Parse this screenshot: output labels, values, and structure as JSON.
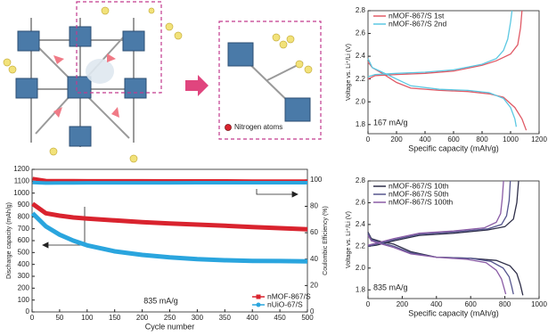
{
  "illustration": {
    "legend": "Nitrogen atoms"
  },
  "chart_data": [
    {
      "type": "line",
      "xlabel": "Specific capacity (mAh/g)",
      "ylabel": "Voltage vs. Li⁺/Li (V)",
      "annotation": "167 mA/g",
      "xlim": [
        0,
        1200
      ],
      "xticks": [
        0,
        200,
        400,
        600,
        800,
        1000,
        1200
      ],
      "ylim": [
        1.72,
        2.8
      ],
      "yticks": [
        1.8,
        {
          "value": 2,
          "label": "2.0"
        },
        2.2,
        2.4,
        2.6,
        2.8
      ],
      "legend": "upper left",
      "series": [
        {
          "name": "nMOF-867/S 1st",
          "color": "#e05a66",
          "x": [
            0,
            30,
            100,
            200,
            300,
            500,
            700,
            850,
            950,
            1030,
            1080,
            1110,
            null,
            0,
            50,
            200,
            400,
            600,
            800,
            900,
            1000,
            1050,
            1070,
            1080
          ],
          "values": [
            2.35,
            2.3,
            2.25,
            2.17,
            2.12,
            2.1,
            2.09,
            2.07,
            2.04,
            1.95,
            1.85,
            1.75,
            null,
            2.2,
            2.23,
            2.24,
            2.25,
            2.27,
            2.32,
            2.36,
            2.42,
            2.5,
            2.65,
            2.8
          ]
        },
        {
          "name": "nMOF-867/S 2nd",
          "color": "#5cc8e2",
          "x": [
            0,
            30,
            100,
            200,
            300,
            500,
            700,
            850,
            950,
            1000,
            1030,
            1040,
            null,
            0,
            50,
            200,
            400,
            600,
            800,
            900,
            950,
            980,
            1000,
            1010
          ],
          "values": [
            2.38,
            2.3,
            2.26,
            2.2,
            2.14,
            2.11,
            2.1,
            2.08,
            2.03,
            1.95,
            1.85,
            1.78,
            null,
            2.22,
            2.24,
            2.25,
            2.26,
            2.28,
            2.33,
            2.38,
            2.45,
            2.55,
            2.7,
            2.8
          ]
        }
      ]
    },
    {
      "type": "cycling",
      "xlabel": "Cycle number",
      "ylabel": "Discharge capacity (mAh/g)",
      "y2label": "Coulombic Efficiency (%)",
      "annotation": "835 mA/g",
      "xlim": [
        0,
        500
      ],
      "xticks": [
        0,
        50,
        100,
        150,
        200,
        250,
        300,
        350,
        400,
        450,
        500
      ],
      "ylim": [
        0,
        1200
      ],
      "yticks": [
        0,
        100,
        200,
        300,
        400,
        500,
        600,
        700,
        800,
        900,
        1000,
        1100,
        1200
      ],
      "y2lim": [
        0,
        108
      ],
      "y2ticks": [
        0,
        20,
        40,
        60,
        80,
        100
      ],
      "legend": "lower right",
      "x": [
        1,
        25,
        50,
        75,
        100,
        150,
        200,
        250,
        300,
        350,
        400,
        450,
        500
      ],
      "series": [
        {
          "name": "nMOF-867/S",
          "color": "#d9232e",
          "marker": "square",
          "values": [
            910,
            830,
            810,
            795,
            785,
            770,
            755,
            745,
            735,
            725,
            715,
            705,
            695
          ],
          "efficiency": [
            101,
            99.5,
            99.4,
            99.4,
            99.3,
            99.3,
            99.3,
            99.2,
            99.2,
            99.2,
            99.1,
            99.1,
            99.1
          ]
        },
        {
          "name": "nUiO-67/S",
          "color": "#2aa5de",
          "marker": "circle",
          "values": [
            830,
            720,
            650,
            600,
            560,
            510,
            480,
            460,
            445,
            435,
            430,
            428,
            425
          ],
          "efficiency": [
            98,
            97.6,
            97.7,
            97.7,
            97.8,
            97.8,
            97.8,
            97.8,
            97.9,
            97.9,
            97.9,
            97.9,
            97.9
          ]
        }
      ]
    },
    {
      "type": "line",
      "xlabel": "Specific capacity (mAh/g)",
      "ylabel": "Voltage vs. Li⁺/Li (V)",
      "annotation": "835 mA/g",
      "xlim": [
        0,
        1000
      ],
      "xticks": [
        0,
        200,
        400,
        600,
        800,
        1000
      ],
      "ylim": [
        1.72,
        2.8
      ],
      "yticks": [
        1.8,
        {
          "value": 2,
          "label": "2.0"
        },
        2.2,
        2.4,
        2.6,
        2.8
      ],
      "legend": "upper left",
      "series": [
        {
          "name": "nMOF-867/S 10th",
          "color": "#2e2e48",
          "x": [
            0,
            20,
            80,
            150,
            250,
            400,
            600,
            750,
            830,
            870,
            890,
            905,
            null,
            0,
            50,
            150,
            300,
            500,
            700,
            800,
            850,
            870,
            880
          ],
          "values": [
            2.33,
            2.27,
            2.24,
            2.22,
            2.15,
            2.1,
            2.09,
            2.07,
            2.02,
            1.95,
            1.85,
            1.75,
            null,
            2.2,
            2.21,
            2.25,
            2.3,
            2.32,
            2.35,
            2.38,
            2.45,
            2.6,
            2.8
          ]
        },
        {
          "name": "nMOF-867/S 50th",
          "color": "#55558e",
          "x": [
            0,
            20,
            80,
            150,
            250,
            400,
            600,
            720,
            790,
            825,
            840,
            850,
            null,
            0,
            50,
            150,
            300,
            500,
            700,
            780,
            810,
            825,
            832
          ],
          "values": [
            2.32,
            2.26,
            2.23,
            2.2,
            2.14,
            2.1,
            2.09,
            2.06,
            2,
            1.92,
            1.83,
            1.76,
            null,
            2.2,
            2.22,
            2.26,
            2.31,
            2.33,
            2.36,
            2.4,
            2.48,
            2.62,
            2.8
          ]
        },
        {
          "name": "nMOF-867/S 100th",
          "color": "#8a5ca6",
          "x": [
            0,
            20,
            80,
            150,
            250,
            400,
            580,
            690,
            750,
            780,
            795,
            805,
            null,
            0,
            50,
            150,
            300,
            500,
            680,
            750,
            775,
            785,
            792
          ],
          "values": [
            2.3,
            2.25,
            2.22,
            2.19,
            2.13,
            2.1,
            2.08,
            2.05,
            1.98,
            1.9,
            1.82,
            1.76,
            null,
            2.21,
            2.23,
            2.27,
            2.32,
            2.34,
            2.37,
            2.42,
            2.5,
            2.64,
            2.8
          ]
        }
      ]
    }
  ]
}
